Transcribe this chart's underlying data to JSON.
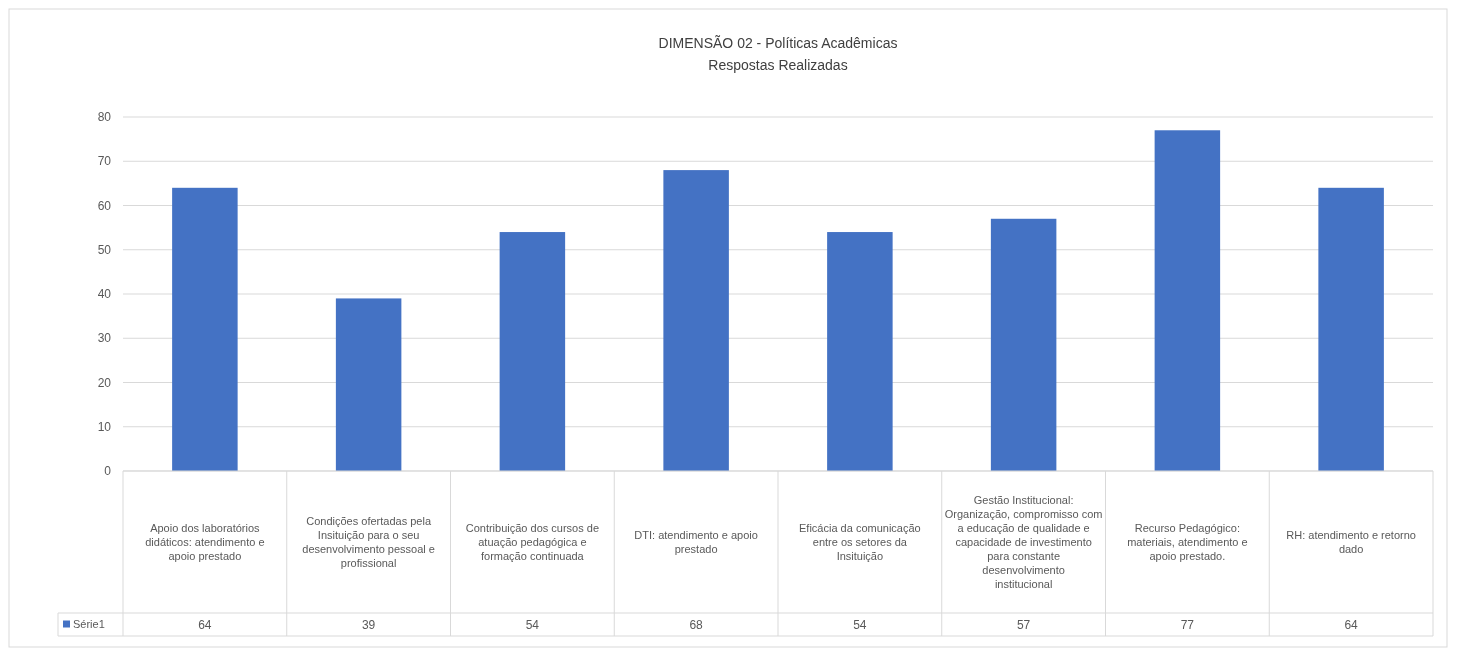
{
  "chart_data": {
    "type": "bar",
    "title": "DIMENSÃO 02 - Políticas Acadêmicas",
    "subtitle": "Respostas Realizadas",
    "categories": [
      "Apoio dos laboratórios didáticos: atendimento e apoio prestado",
      "Condições ofertadas pela Insituição para o seu desenvolvimento pessoal e profissional",
      "Contribuição dos cursos de atuação pedagógica e formação continuada",
      "DTI: atendimento e apoio prestado",
      "Eficácia da comunicação entre os setores da Insituição",
      "Gestão Institucional: Organização, compromisso com a educação de qualidade e capacidade de investimento para constante desenvolvimento institucional",
      "Recurso Pedagógico: materiais, atendimento e apoio prestado.",
      "RH: atendimento e retorno dado"
    ],
    "series": [
      {
        "name": "Série1",
        "color": "#4472c4",
        "values": [
          64,
          39,
          54,
          68,
          54,
          57,
          77,
          64
        ]
      }
    ],
    "ylim": [
      0,
      80
    ],
    "yticks": [
      0,
      10,
      20,
      30,
      40,
      50,
      60,
      70,
      80
    ],
    "grid": "y",
    "data_labels": true,
    "legend": "bottom"
  }
}
